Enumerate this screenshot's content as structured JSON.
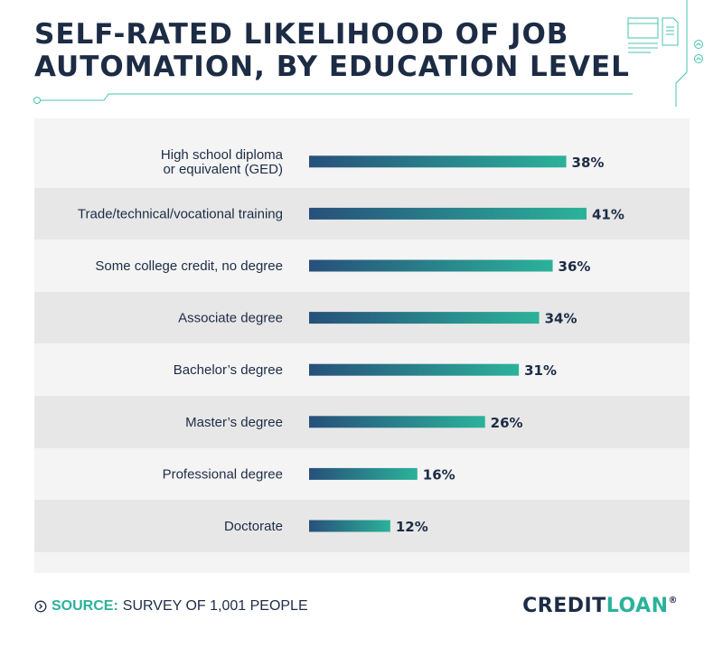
{
  "title_lines": [
    "SELF-RATED LIKELIHOOD OF JOB",
    "AUTOMATION, BY EDUCATION LEVEL"
  ],
  "source": {
    "label": "SOURCE:",
    "text": "SURVEY OF 1,001 PEOPLE"
  },
  "brand": {
    "part_a": "CREDIT",
    "part_b": "LOAN",
    "mark": "®"
  },
  "colors": {
    "bar_start": "#27507a",
    "bar_end": "#2bb29a",
    "text": "#1d2c45",
    "accent": "#2bb29a"
  },
  "chart_data": {
    "type": "bar",
    "orientation": "horizontal",
    "categories": [
      [
        "High school diploma",
        "or equivalent (GED)"
      ],
      [
        "Trade/technical/vocational training"
      ],
      [
        "Some college credit, no degree"
      ],
      [
        "Associate degree"
      ],
      [
        "Bachelor’s degree"
      ],
      [
        "Master’s degree"
      ],
      [
        "Professional degree"
      ],
      [
        "Doctorate"
      ]
    ],
    "values": [
      38,
      41,
      36,
      34,
      31,
      26,
      16,
      12
    ],
    "value_labels": [
      "38%",
      "41%",
      "36%",
      "34%",
      "31%",
      "26%",
      "16%",
      "12%"
    ],
    "xlim": [
      0,
      41
    ],
    "grid": false
  }
}
